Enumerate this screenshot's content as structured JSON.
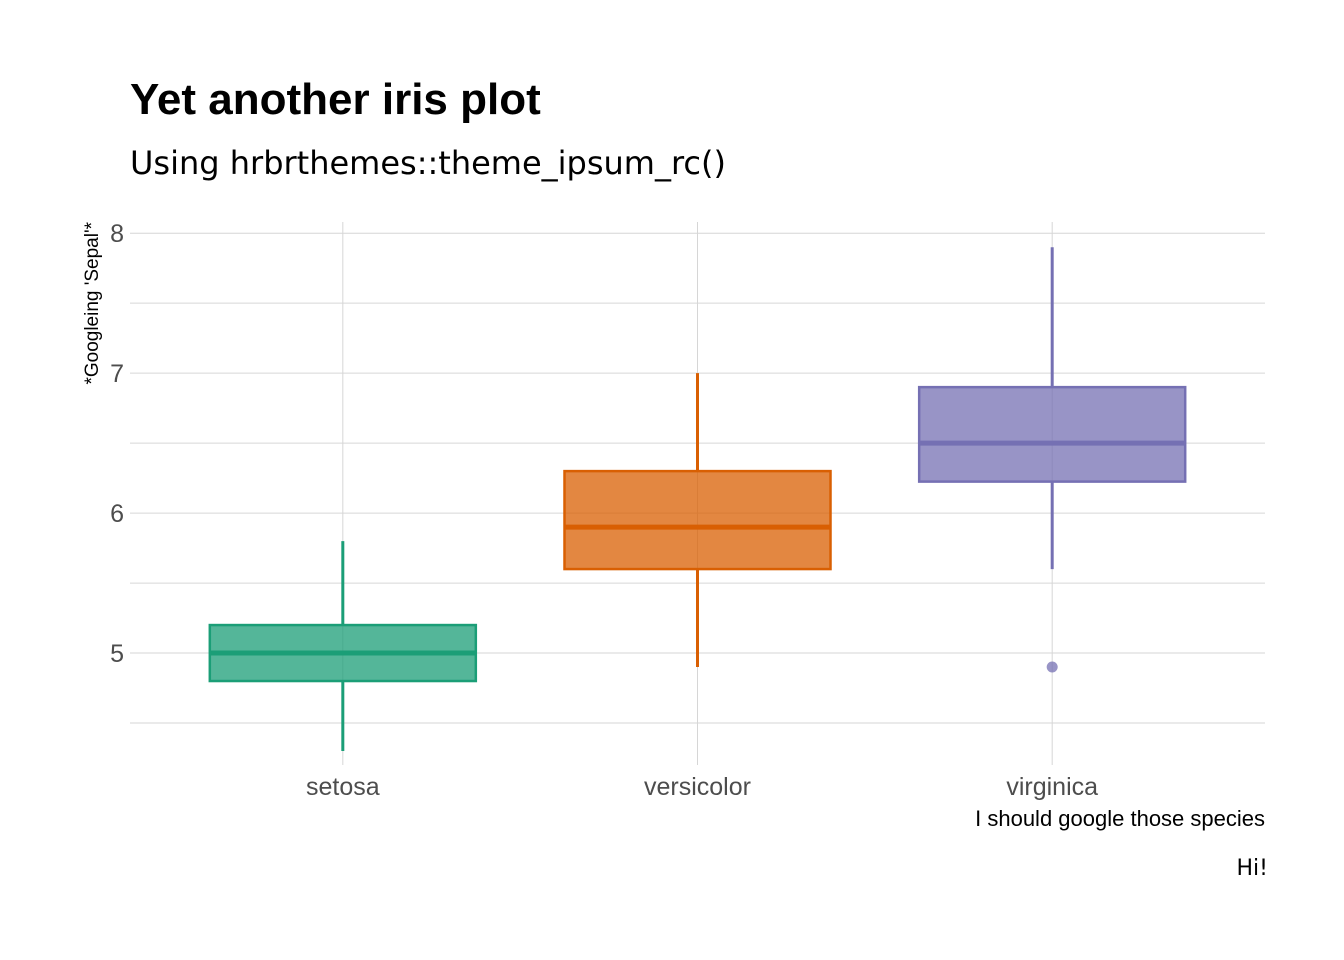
{
  "chart_data": {
    "type": "box",
    "title": "Yet another iris plot",
    "subtitle": "Using hrbrthemes::theme_ipsum_rc()",
    "xlabel": "I should google those species",
    "ylabel": "*Googleing 'Sepal'*",
    "caption": "Hi!",
    "categories": [
      "setosa",
      "versicolor",
      "virginica"
    ],
    "ylim": [
      4.2,
      8.08
    ],
    "yticks": [
      5,
      6,
      7,
      8
    ],
    "yticks_labels": [
      "5",
      "6",
      "7",
      "8"
    ],
    "y_minor_ticks": [
      4.5,
      5.5,
      6.5,
      7.5
    ],
    "grid": true,
    "series": [
      {
        "category": "setosa",
        "min": 4.3,
        "q1": 4.8,
        "median": 5.0,
        "q3": 5.2,
        "max": 5.8,
        "outliers": [],
        "color": "#1b9e77"
      },
      {
        "category": "versicolor",
        "min": 4.9,
        "q1": 5.6,
        "median": 5.9,
        "q3": 6.3,
        "max": 7.0,
        "outliers": [],
        "color": "#d95f02"
      },
      {
        "category": "virginica",
        "min": 5.6,
        "q1": 6.225,
        "median": 6.5,
        "q3": 6.9,
        "max": 7.9,
        "outliers": [
          4.9
        ],
        "color": "#7570b3"
      }
    ]
  }
}
